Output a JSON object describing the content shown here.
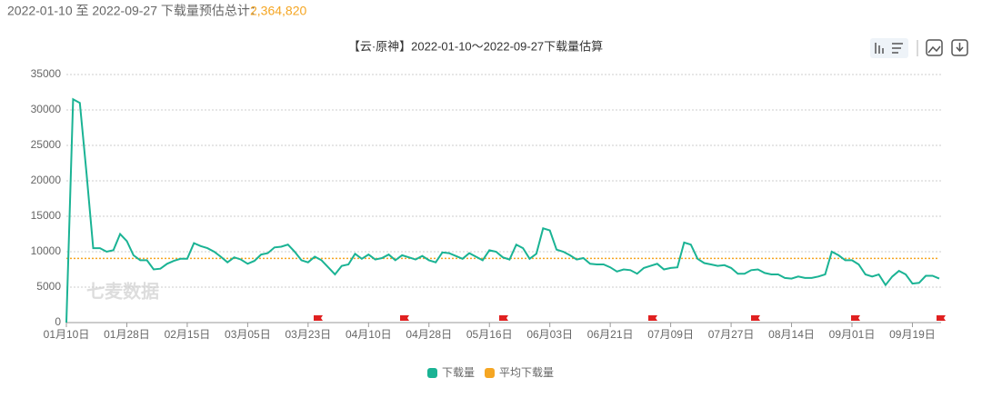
{
  "header": {
    "range_text": "2022-01-10 至 2022-09-27 下载量预估总计：",
    "total": "2,364,820"
  },
  "chart_data": {
    "type": "line",
    "title": "【云·原神】2022-01-10～2022-09-27下载量估算",
    "watermark": "七麦数据",
    "categories": [
      "01月10日",
      null,
      null,
      null,
      null,
      null,
      null,
      null,
      null,
      "01月28日",
      null,
      null,
      null,
      null,
      null,
      null,
      null,
      null,
      "02月15日",
      null,
      null,
      null,
      null,
      null,
      null,
      null,
      null,
      "03月05日",
      null,
      null,
      null,
      null,
      null,
      null,
      null,
      null,
      "03月23日",
      null,
      null,
      null,
      null,
      null,
      null,
      null,
      null,
      "04月10日",
      null,
      null,
      null,
      null,
      null,
      null,
      null,
      null,
      "04月28日",
      null,
      null,
      null,
      null,
      null,
      null,
      null,
      null,
      "05月16日",
      null,
      null,
      null,
      null,
      null,
      null,
      null,
      null,
      "06月03日",
      null,
      null,
      null,
      null,
      null,
      null,
      null,
      null,
      "06月21日",
      null,
      null,
      null,
      null,
      null,
      null,
      null,
      null,
      "07月09日",
      null,
      null,
      null,
      null,
      null,
      null,
      null,
      null,
      "07月27日",
      null,
      null,
      null,
      null,
      null,
      null,
      null,
      null,
      "08月14日",
      null,
      null,
      null,
      null,
      null,
      null,
      null,
      null,
      "09月01日",
      null,
      null,
      null,
      null,
      null,
      null,
      null,
      null,
      "09月19日",
      null,
      null,
      null,
      null
    ],
    "series": [
      {
        "name": "下载量",
        "color": "#1ab394",
        "values": [
          0,
          31500,
          31000,
          21000,
          10500,
          10500,
          10000,
          10200,
          12500,
          11500,
          9500,
          8800,
          8800,
          7500,
          7600,
          8300,
          8700,
          9000,
          9000,
          11200,
          10800,
          10500,
          10000,
          9300,
          8500,
          9200,
          8900,
          8300,
          8700,
          9600,
          9800,
          10600,
          10700,
          11000,
          10000,
          8800,
          8500,
          9300,
          8800,
          7800,
          6800,
          8000,
          8200,
          9700,
          9000,
          9600,
          8900,
          9100,
          9600,
          8800,
          9500,
          9200,
          8900,
          9400,
          8800,
          8500,
          9900,
          9800,
          9400,
          9000,
          9800,
          9300,
          8800,
          10200,
          10000,
          9200,
          8900,
          11000,
          10500,
          9000,
          9700,
          13300,
          13000,
          10300,
          10000,
          9500,
          8900,
          9100,
          8300,
          8200,
          8200,
          7800,
          7200,
          7500,
          7400,
          6900,
          7700,
          8000,
          8300,
          7500,
          7700,
          7800,
          11300,
          11000,
          9000,
          8400,
          8200,
          8000,
          8100,
          7700,
          6900,
          6900,
          7400,
          7500,
          7000,
          6800,
          6800,
          6300,
          6200,
          6500,
          6300,
          6300,
          6500,
          6800,
          10000,
          9500,
          8800,
          8800,
          8200,
          6800,
          6500,
          6800,
          5300,
          6500,
          7300,
          6800,
          5500,
          5600,
          6600,
          6600,
          6200
        ]
      }
    ],
    "average": {
      "name": "平均下载量",
      "color": "#f5a623",
      "value": 9061
    },
    "ylim": [
      0,
      35000
    ],
    "yticks": [
      0,
      5000,
      10000,
      15000,
      20000,
      25000,
      30000,
      35000
    ],
    "grid": true
  }
}
